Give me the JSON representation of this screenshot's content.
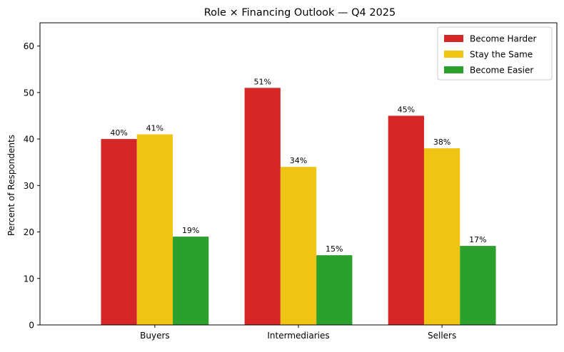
{
  "chart_data": {
    "type": "bar",
    "title": "Role × Financing Outlook — Q4 2025",
    "xlabel": "",
    "ylabel": "Percent of Respondents",
    "categories": [
      "Buyers",
      "Intermediaries",
      "Sellers"
    ],
    "series": [
      {
        "name": "Become Harder",
        "color": "#d62728",
        "values": [
          40,
          51,
          45
        ],
        "labels": [
          "40%",
          "51%",
          "45%"
        ]
      },
      {
        "name": "Stay the Same",
        "color": "#f0c412",
        "values": [
          41,
          34,
          38
        ],
        "labels": [
          "41%",
          "34%",
          "38%"
        ]
      },
      {
        "name": "Become Easier",
        "color": "#2ca02c",
        "values": [
          19,
          15,
          17
        ],
        "labels": [
          "19%",
          "15%",
          "17%"
        ]
      }
    ],
    "ylim": [
      0,
      65
    ],
    "yticks": [
      0,
      10,
      20,
      30,
      40,
      50,
      60
    ],
    "ytick_labels": [
      "0",
      "10",
      "20",
      "30",
      "40",
      "50",
      "60"
    ],
    "grid": false,
    "legend_position": "top-right"
  }
}
